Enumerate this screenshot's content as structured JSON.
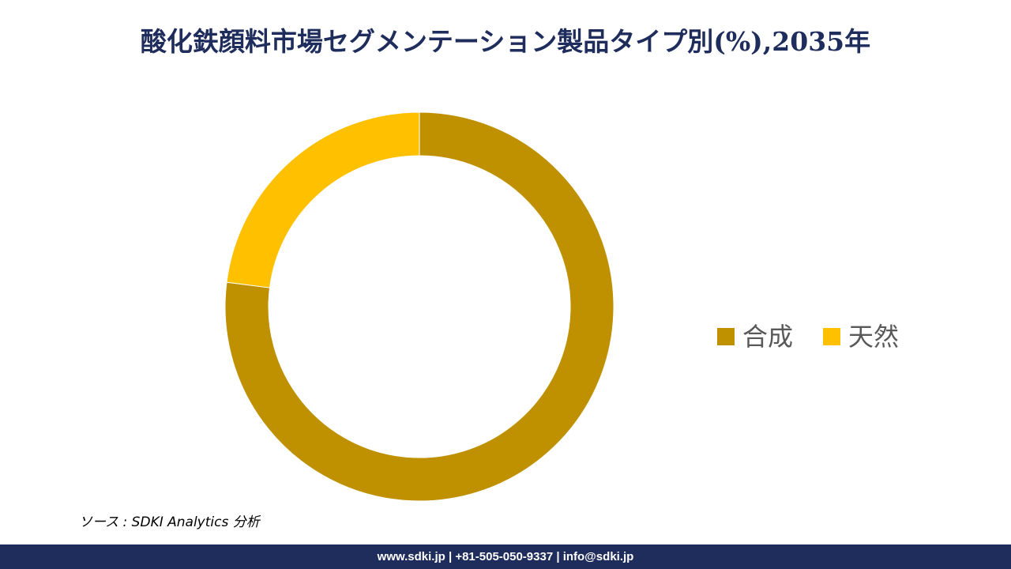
{
  "title": "酸化鉄顔料市場セグメンテーション製品タイプ別(%),2035年",
  "chart_data": {
    "type": "pie",
    "variant": "donut",
    "start_angle": "12 o'clock, clockwise",
    "categories": [
      "合成",
      "天然"
    ],
    "values": [
      77,
      23
    ],
    "colors": [
      "#bf9000",
      "#ffc000"
    ],
    "legend_placement": "right"
  },
  "source_text": "ソース : SDKI Analytics 分析",
  "footer_text": "www.sdki.jp | +81-505-050-9337 | info@sdki.jp",
  "colors": {
    "title": "#1f2d5c",
    "footer_bg": "#1f2d5c"
  }
}
